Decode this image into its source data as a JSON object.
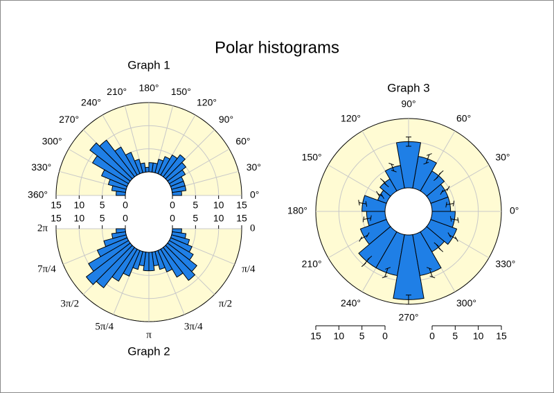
{
  "title": "Polar histograms",
  "chart_data": [
    {
      "type": "polar_histogram",
      "title": "Graph 1",
      "color": "#1f7fe6",
      "bins": [
        0,
        15,
        30,
        45,
        60,
        75,
        90,
        105,
        120,
        135,
        150,
        165,
        180,
        195,
        210,
        225,
        240,
        255,
        270,
        285,
        300,
        315,
        330,
        345,
        360
      ],
      "values": [
        2,
        3,
        3,
        3,
        4,
        5,
        6,
        5,
        4,
        3,
        2,
        2,
        1,
        2,
        3,
        5,
        7,
        10,
        11,
        9,
        6,
        4,
        3,
        2
      ],
      "xlim": [
        0,
        360
      ],
      "xticks": [
        {
          "value": 0,
          "label": "0°"
        },
        {
          "value": 30,
          "label": "30°"
        },
        {
          "value": 60,
          "label": "60°"
        },
        {
          "value": 90,
          "label": "90°"
        },
        {
          "value": 120,
          "label": "120°"
        },
        {
          "value": 150,
          "label": "150°"
        },
        {
          "value": 180,
          "label": "180°"
        },
        {
          "value": 210,
          "label": "210°"
        },
        {
          "value": 240,
          "label": "240°"
        },
        {
          "value": 270,
          "label": "270°"
        },
        {
          "value": 300,
          "label": "300°"
        },
        {
          "value": 330,
          "label": "330°"
        },
        {
          "value": 360,
          "label": "360°"
        }
      ],
      "ylim": [
        0,
        15
      ],
      "yticks": [
        0,
        5,
        10,
        15
      ]
    },
    {
      "type": "polar_histogram",
      "title": "Graph 2",
      "color": "#1f7fe6",
      "bins": [
        0,
        0.2618,
        0.5236,
        0.7854,
        1.0472,
        1.309,
        1.5708,
        1.8326,
        2.0944,
        2.3562,
        2.618,
        2.8798,
        3.1416,
        3.4034,
        3.6652,
        3.927,
        4.1888,
        4.4506,
        4.7124,
        4.9742,
        5.236,
        5.4978,
        5.7596,
        6.0214,
        6.2832
      ],
      "values": [
        2,
        3,
        4,
        5,
        6,
        8,
        9,
        7,
        5,
        4,
        3,
        4,
        4,
        3,
        4,
        6,
        8,
        11,
        12,
        10,
        7,
        5,
        3,
        2
      ],
      "xlim": [
        0,
        6.2832
      ],
      "xticks": [
        0,
        {
          "value": 0.7854,
          "label": "π/4"
        },
        {
          "value": 1.5708,
          "label": "π/2"
        },
        {
          "value": 2.3562,
          "label": "3π/4"
        },
        {
          "value": 3.1416,
          "label": "π"
        },
        {
          "value": 3.927,
          "label": "5π/4"
        },
        {
          "value": 4.7124,
          "label": "3π/2"
        },
        {
          "value": 5.4978,
          "label": "7π/4"
        },
        {
          "value": 6.2832,
          "label": "2π"
        }
      ],
      "ylim": [
        0,
        15
      ],
      "yticks": [
        0,
        5,
        10,
        15
      ]
    },
    {
      "type": "polar_histogram",
      "title": "Graph 3",
      "color": "#1f7fe6",
      "bins": [
        0,
        20,
        40,
        60,
        80,
        100,
        120,
        140,
        160,
        180,
        200,
        220,
        240,
        260,
        280,
        300,
        320,
        340,
        360
      ],
      "values": [
        4,
        4,
        5,
        7,
        10,
        5,
        3,
        2,
        5,
        4,
        6,
        9,
        9,
        14,
        9,
        5,
        6,
        5
      ],
      "errors": [
        0.8,
        0.8,
        0.9,
        1,
        1,
        0.8,
        0.7,
        0.6,
        0.8,
        0.8,
        0.9,
        1,
        1,
        1,
        1,
        0.8,
        0.9,
        0.8
      ],
      "xlim": [
        0,
        360
      ],
      "xticks": [
        {
          "value": 0,
          "label": "0°"
        },
        {
          "value": 30,
          "label": "30°"
        },
        {
          "value": 60,
          "label": "60°"
        },
        {
          "value": 90,
          "label": "90°"
        },
        {
          "value": 120,
          "label": "120°"
        },
        {
          "value": 150,
          "label": "150°"
        },
        {
          "value": 180,
          "label": "180°"
        },
        {
          "value": 210,
          "label": "210°"
        },
        {
          "value": 240,
          "label": "240°"
        },
        {
          "value": 270,
          "label": "270°"
        },
        {
          "value": 300,
          "label": "300°"
        },
        {
          "value": 330,
          "label": "330°"
        }
      ],
      "ylim": [
        0,
        15
      ],
      "yticks": [
        0,
        5,
        10,
        15
      ]
    }
  ]
}
